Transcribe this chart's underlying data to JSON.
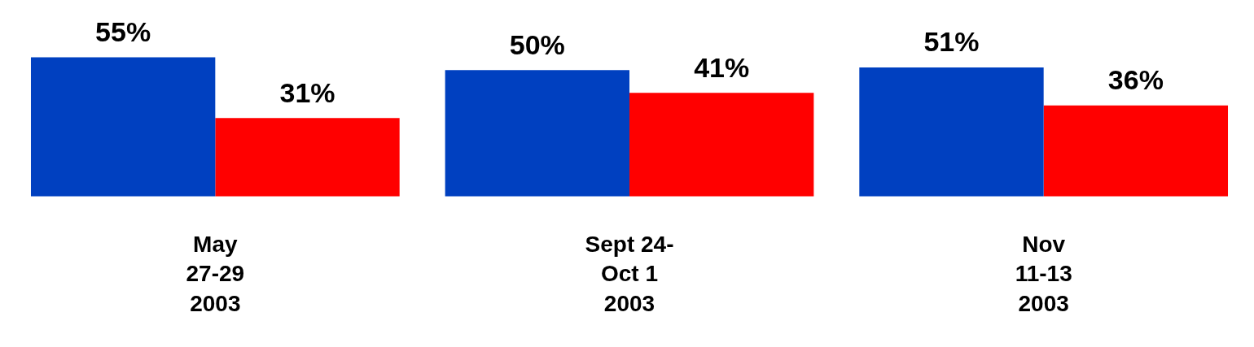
{
  "chart_data": {
    "type": "bar",
    "categories": [
      "May\n27-29\n2003",
      "Sept 24-\nOct 1\n2003",
      "Nov\n11-13\n2003"
    ],
    "series": [
      {
        "color": "#0040c0",
        "values": [
          55,
          50,
          51
        ],
        "value_labels": [
          "55%",
          "50%",
          "51%"
        ]
      },
      {
        "color": "#ff0000",
        "values": [
          31,
          41,
          36
        ],
        "value_labels": [
          "31%",
          "41%",
          "36%"
        ]
      }
    ]
  }
}
